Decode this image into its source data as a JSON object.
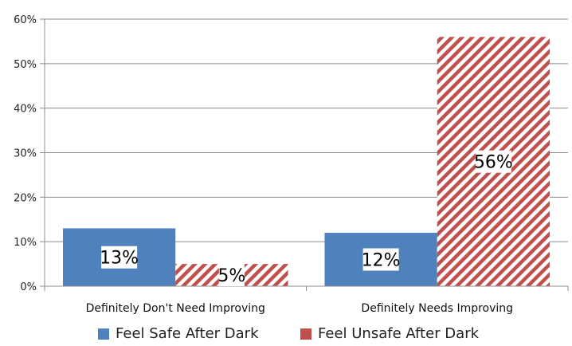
{
  "chart_data": {
    "type": "bar",
    "categories": [
      "Definitely Don't Need Improving",
      "Definitely Needs Improving"
    ],
    "series": [
      {
        "name": "Feel Safe After Dark",
        "values": [
          13,
          12
        ],
        "labels": [
          "13%",
          "12%"
        ],
        "color": "#4F81BD",
        "pattern": "solid"
      },
      {
        "name": "Feel Unsafe After Dark",
        "values": [
          5,
          56
        ],
        "labels": [
          "5%",
          "56%"
        ],
        "color": "#C0504D",
        "pattern": "diagonal-stripes"
      }
    ],
    "y_ticks": [
      "0%",
      "10%",
      "20%",
      "30%",
      "40%",
      "50%",
      "60%"
    ],
    "ylim": [
      0,
      60
    ],
    "grid": true,
    "legend_position": "bottom"
  }
}
